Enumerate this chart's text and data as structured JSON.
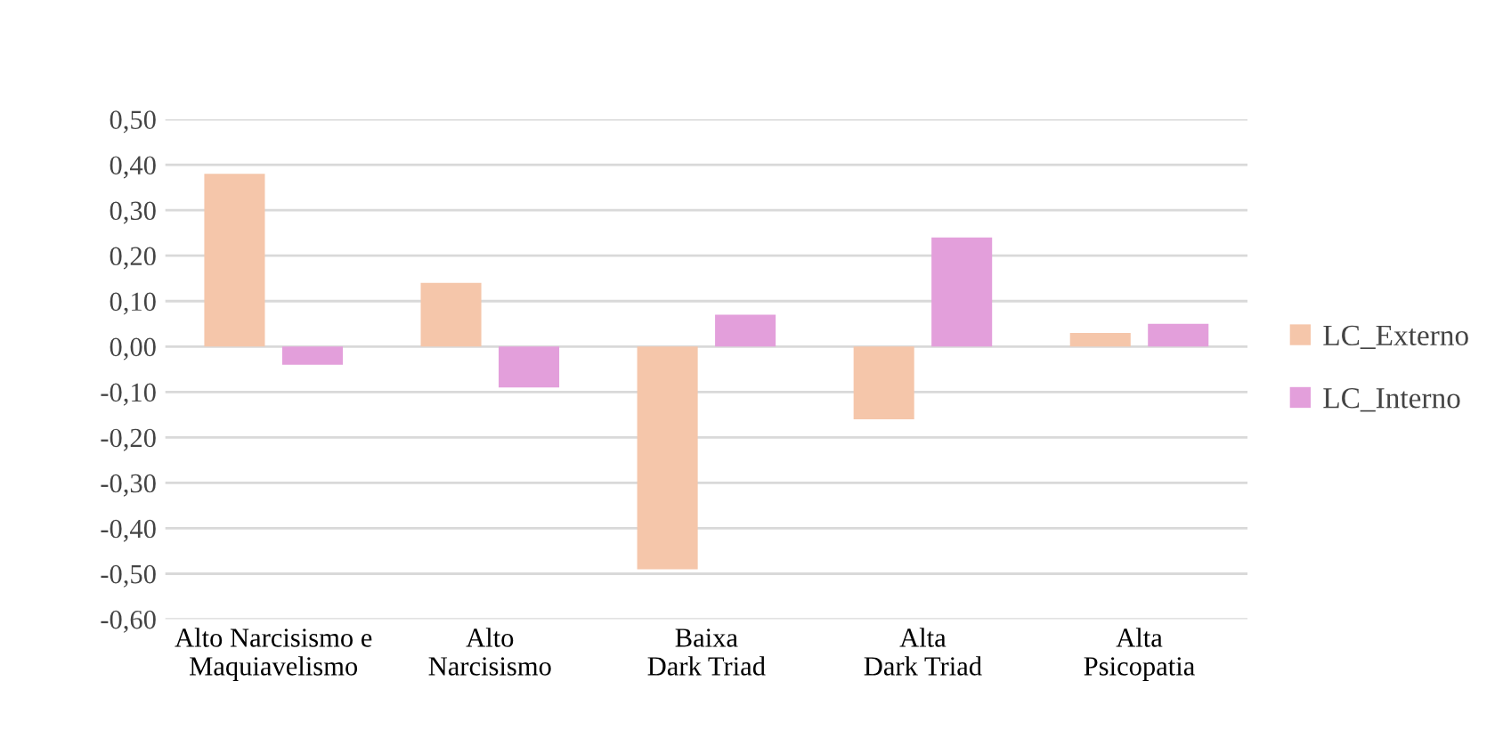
{
  "chart_data": {
    "type": "bar",
    "categories": [
      "Alto Narcisismo e\nMaquiavelismo",
      "Alto\nNarcisismo",
      "Baixa\nDark Triad",
      "Alta\nDark Triad",
      "Alta\nPsicopatia"
    ],
    "series": [
      {
        "name": "LC_Externo",
        "color": "#f5c6aa",
        "values": [
          0.38,
          0.14,
          -0.49,
          -0.16,
          0.03
        ]
      },
      {
        "name": "LC_Interno",
        "color": "#e39fdb",
        "values": [
          -0.04,
          -0.09,
          0.07,
          0.24,
          0.05
        ]
      }
    ],
    "ylim": [
      -0.6,
      0.5
    ],
    "yticks": [
      {
        "value": -0.6,
        "label": "-0,60"
      },
      {
        "value": -0.5,
        "label": "-0,50"
      },
      {
        "value": -0.4,
        "label": "-0,40"
      },
      {
        "value": -0.3,
        "label": "-0,30"
      },
      {
        "value": -0.2,
        "label": "-0,20"
      },
      {
        "value": -0.1,
        "label": "-0,10"
      },
      {
        "value": 0,
        "label": "0,00"
      },
      {
        "value": 0.1,
        "label": "0,10"
      },
      {
        "value": 0.2,
        "label": "0,20"
      },
      {
        "value": 0.3,
        "label": "0,30"
      },
      {
        "value": 0.4,
        "label": "0,40"
      },
      {
        "value": 0.5,
        "label": "0,50"
      }
    ],
    "grid": "y",
    "legend": "right"
  }
}
